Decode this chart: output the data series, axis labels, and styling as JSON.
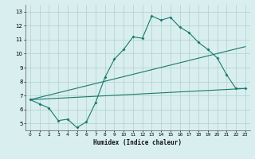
{
  "title": "",
  "xlabel": "Humidex (Indice chaleur)",
  "xlim": [
    -0.5,
    23.5
  ],
  "ylim": [
    4.5,
    13.5
  ],
  "yticks": [
    5,
    6,
    7,
    8,
    9,
    10,
    11,
    12,
    13
  ],
  "xticks": [
    0,
    1,
    2,
    3,
    4,
    5,
    6,
    7,
    8,
    9,
    10,
    11,
    12,
    13,
    14,
    15,
    16,
    17,
    18,
    19,
    20,
    21,
    22,
    23
  ],
  "bg_color": "#d9eeee",
  "grid_color": "#b0d0d0",
  "line_color": "#1a7a6e",
  "series1_x": [
    0,
    1,
    2,
    3,
    4,
    5,
    6,
    7,
    8,
    9,
    10,
    11,
    12,
    13,
    14,
    15,
    16,
    17,
    18,
    19,
    20,
    21,
    22,
    23
  ],
  "series1_y": [
    6.7,
    6.4,
    6.1,
    5.2,
    5.3,
    4.7,
    5.1,
    6.5,
    8.3,
    9.6,
    10.3,
    11.2,
    11.1,
    12.7,
    12.4,
    12.6,
    11.9,
    11.5,
    10.8,
    10.3,
    9.7,
    8.5,
    7.5,
    7.5
  ],
  "series2_x": [
    0,
    23
  ],
  "series2_y": [
    6.7,
    7.5
  ],
  "series3_x": [
    0,
    23
  ],
  "series3_y": [
    6.7,
    10.5
  ]
}
